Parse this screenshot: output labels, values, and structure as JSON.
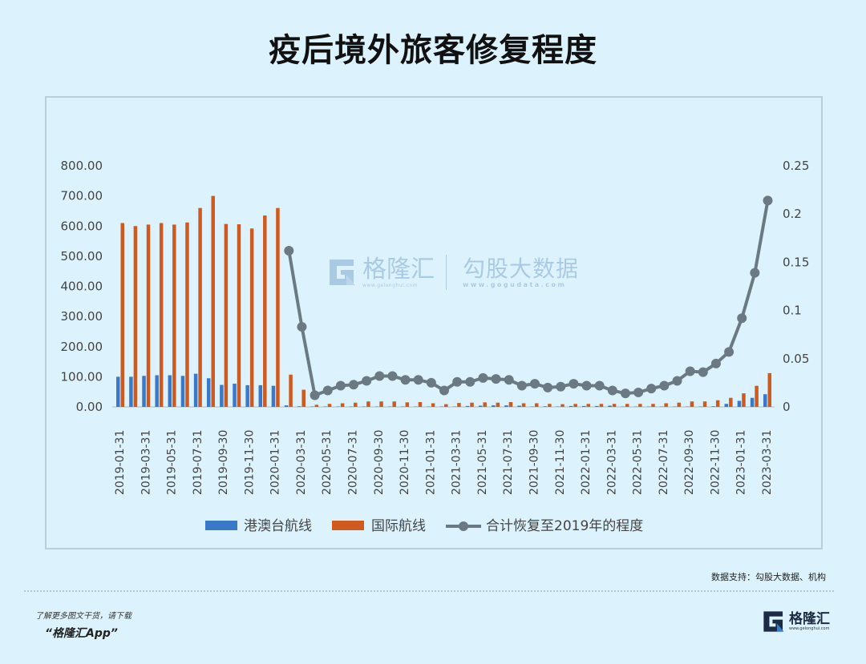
{
  "header": {
    "title": "疫后境外旅客修复程度"
  },
  "footer": {
    "source": "数据支持：勾股大数据、机构",
    "promo_line1": "了解更多图文干货，请下载",
    "promo_line2": "“格隆汇App”",
    "logo_name": "格隆汇",
    "logo_url": "www.gelonghui.com"
  },
  "watermark": {
    "brand1": "格隆汇",
    "brand1_url": "www.gelonghui.com",
    "brand2": "勾股大数据",
    "brand2_url": "www.gogudata.com"
  },
  "colors": {
    "hk_macau_taiwan": "#3a78c9",
    "international": "#cf5a1e",
    "recovery_line": "#6b7a82",
    "background": "#dcf3fd",
    "axis_text": "#444444"
  },
  "chart_data": {
    "type": "bar",
    "title": "疫后境外旅客修复程度",
    "xlabel": "",
    "ylabel": "",
    "ylim": [
      0,
      800
    ],
    "y2lim": [
      0,
      0.25
    ],
    "yticks": [
      "800.00",
      "700.00",
      "600.00",
      "500.00",
      "400.00",
      "300.00",
      "200.00",
      "100.00",
      "0.00"
    ],
    "y2ticks": [
      "0.25",
      "0.2",
      "0.15",
      "0.1",
      "0.05",
      "0"
    ],
    "legend_position": "bottom",
    "grid": false,
    "tick_labels": [
      "2019-01-31",
      "2019-03-31",
      "2019-05-31",
      "2019-07-31",
      "2019-09-30",
      "2019-11-30",
      "2020-01-31",
      "2020-03-31",
      "2020-05-31",
      "2020-07-31",
      "2020-09-30",
      "2020-11-30",
      "2021-01-31",
      "2021-03-31",
      "2021-05-31",
      "2021-07-31",
      "2021-09-30",
      "2021-11-30",
      "2022-01-31",
      "2022-03-31",
      "2022-05-31",
      "2022-07-31",
      "2022-09-30",
      "2022-11-30",
      "2023-01-31",
      "2023-03-31"
    ],
    "categories": [
      "2019-01-31",
      "2019-02-28",
      "2019-03-31",
      "2019-04-30",
      "2019-05-31",
      "2019-06-30",
      "2019-07-31",
      "2019-08-31",
      "2019-09-30",
      "2019-10-31",
      "2019-11-30",
      "2019-12-31",
      "2020-01-31",
      "2020-02-29",
      "2020-03-31",
      "2020-04-30",
      "2020-05-31",
      "2020-06-30",
      "2020-07-31",
      "2020-08-31",
      "2020-09-30",
      "2020-10-31",
      "2020-11-30",
      "2020-12-31",
      "2021-01-31",
      "2021-02-28",
      "2021-03-31",
      "2021-04-30",
      "2021-05-31",
      "2021-06-30",
      "2021-07-31",
      "2021-08-31",
      "2021-09-30",
      "2021-10-31",
      "2021-11-30",
      "2021-12-31",
      "2022-01-31",
      "2022-02-28",
      "2022-03-31",
      "2022-04-30",
      "2022-05-31",
      "2022-06-30",
      "2022-07-31",
      "2022-08-31",
      "2022-09-30",
      "2022-10-31",
      "2022-11-30",
      "2022-12-31",
      "2023-01-31",
      "2023-02-28",
      "2023-03-31"
    ],
    "series": [
      {
        "name": "港澳台航线",
        "type": "bar",
        "axis": "left",
        "color": "#3a78c9",
        "values": [
          100,
          100,
          103,
          105,
          105,
          103,
          110,
          95,
          73,
          77,
          72,
          72,
          70,
          5,
          2,
          1,
          1,
          1,
          1,
          1,
          1,
          1,
          1,
          1,
          1,
          1,
          1,
          3,
          4,
          5,
          5,
          4,
          1,
          2,
          1,
          3,
          3,
          3,
          4,
          1,
          1,
          1,
          1,
          1,
          1,
          1,
          2,
          10,
          20,
          30,
          42
        ]
      },
      {
        "name": "国际航线",
        "type": "bar",
        "axis": "left",
        "color": "#cf5a1e",
        "values": [
          610,
          600,
          605,
          610,
          605,
          612,
          660,
          700,
          607,
          606,
          592,
          635,
          660,
          107,
          57,
          7,
          10,
          12,
          14,
          18,
          18,
          18,
          15,
          16,
          12,
          9,
          13,
          14,
          15,
          14,
          16,
          12,
          12,
          10,
          9,
          10,
          10,
          10,
          10,
          10,
          10,
          10,
          12,
          14,
          18,
          18,
          22,
          30,
          45,
          70,
          112
        ]
      },
      {
        "name": "合计恢复至2019年的程度",
        "type": "line",
        "axis": "right",
        "color": "#6b7a82",
        "values": [
          null,
          null,
          null,
          null,
          null,
          null,
          null,
          null,
          null,
          null,
          null,
          null,
          null,
          0.162,
          0.083,
          0.012,
          0.017,
          0.022,
          0.023,
          0.027,
          0.032,
          0.032,
          0.028,
          0.028,
          0.025,
          0.017,
          0.026,
          0.026,
          0.03,
          0.029,
          0.028,
          0.022,
          0.024,
          0.02,
          0.021,
          0.024,
          0.022,
          0.022,
          0.017,
          0.014,
          0.015,
          0.019,
          0.022,
          0.027,
          0.037,
          0.036,
          0.045,
          0.057,
          0.092,
          0.139,
          0.214
        ]
      }
    ]
  }
}
